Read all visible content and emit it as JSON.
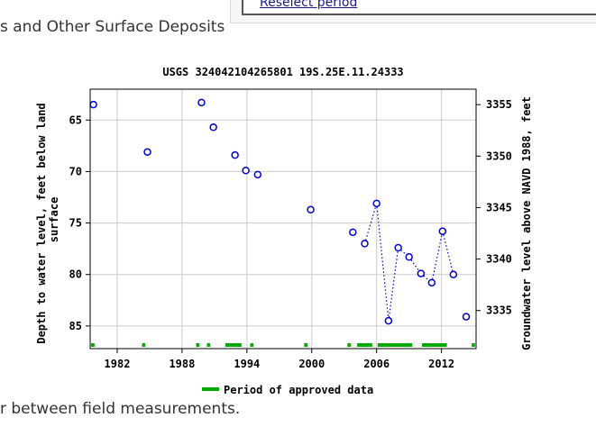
{
  "page": {
    "top_link": "Reselect period",
    "heading_fragment": "s and Other Surface Deposits",
    "bottom_fragment": "r between field measurements."
  },
  "chart_data": {
    "type": "scatter",
    "title": "USGS 324042104265801 19S.25E.11.24333",
    "ylabel_left_line1": "Depth to water level, feet below land",
    "ylabel_left_line2": "surface",
    "ylabel_right": "Groundwater level above NAVD 1988, feet",
    "xlim": [
      1979.5,
      2015.2
    ],
    "ylim_left": [
      87.2,
      62.0
    ],
    "ylim_right": [
      3331.3,
      3356.5
    ],
    "x_ticks": [
      1982,
      1988,
      1994,
      2000,
      2006,
      2012
    ],
    "y_ticks_left": [
      65,
      70,
      75,
      80,
      85
    ],
    "y_ticks_right": [
      3355,
      3350,
      3345,
      3340,
      3335
    ],
    "points": [
      {
        "x": 1979.8,
        "y": 63.5
      },
      {
        "x": 1984.8,
        "y": 68.1
      },
      {
        "x": 1989.8,
        "y": 63.3
      },
      {
        "x": 1990.9,
        "y": 65.7
      },
      {
        "x": 1992.9,
        "y": 68.4
      },
      {
        "x": 1993.9,
        "y": 69.9
      },
      {
        "x": 1995.0,
        "y": 70.3
      },
      {
        "x": 1999.9,
        "y": 73.7
      },
      {
        "x": 2003.8,
        "y": 75.9
      },
      {
        "x": 2004.9,
        "y": 77.0
      },
      {
        "x": 2006.0,
        "y": 73.1
      },
      {
        "x": 2007.1,
        "y": 84.5
      },
      {
        "x": 2008.0,
        "y": 77.4
      },
      {
        "x": 2009.0,
        "y": 78.3
      },
      {
        "x": 2010.1,
        "y": 79.9
      },
      {
        "x": 2011.1,
        "y": 80.8
      },
      {
        "x": 2012.1,
        "y": 75.8
      },
      {
        "x": 2013.1,
        "y": 80.0
      },
      {
        "x": 2016.1,
        "y": 84.1
      }
    ],
    "dotted_segments": [
      [
        9,
        10
      ],
      [
        10,
        11
      ],
      [
        11,
        12
      ],
      [
        12,
        13
      ],
      [
        13,
        14
      ],
      [
        14,
        15
      ],
      [
        15,
        16
      ],
      [
        16,
        17
      ]
    ],
    "approved_periods": [
      [
        1979.5,
        1979.9
      ],
      [
        1984.3,
        1984.6
      ],
      [
        1989.3,
        1989.6
      ],
      [
        1990.3,
        1990.6
      ],
      [
        1992.0,
        1993.5
      ],
      [
        1994.3,
        1994.6
      ],
      [
        1999.3,
        1999.6
      ],
      [
        2003.3,
        2003.6
      ],
      [
        2004.2,
        2005.6
      ],
      [
        2006.1,
        2009.3
      ],
      [
        2010.2,
        2012.5
      ],
      [
        2014.8,
        2015.1
      ]
    ],
    "legend": "Period of approved data",
    "legend_position": "bottom-center",
    "grid": true,
    "colors": {
      "points": "#0000cc",
      "approved": "#00aa00",
      "grid": "#cccccc",
      "axis": "#000000"
    }
  }
}
